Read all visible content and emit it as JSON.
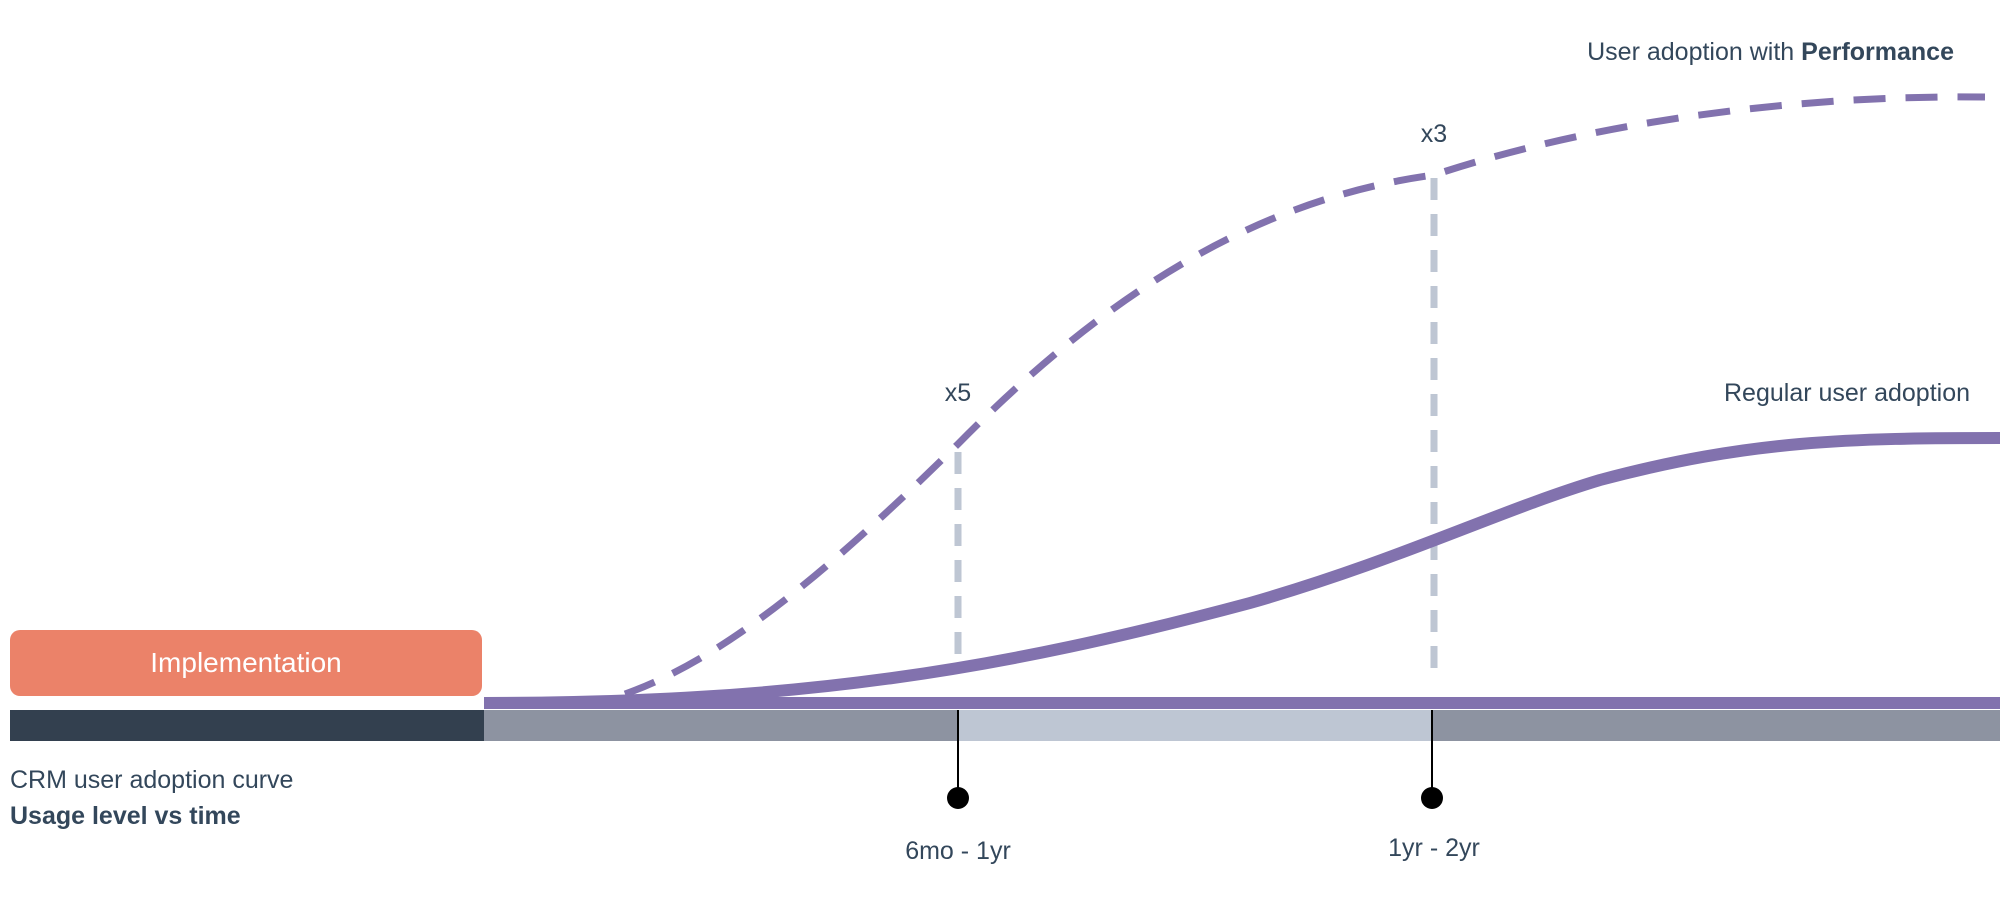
{
  "implementation": {
    "label": "Implementation"
  },
  "caption": {
    "line1": "CRM user adoption curve",
    "line2": "Usage level vs time"
  },
  "curves": {
    "performance": {
      "label_prefix": "User adoption with ",
      "label_bold": "Performance"
    },
    "regular": {
      "label": "Regular user adoption"
    }
  },
  "multipliers": [
    {
      "label": "x5"
    },
    {
      "label": "x3"
    }
  ],
  "periods": [
    {
      "label": "6mo - 1yr"
    },
    {
      "label": "1yr - 2yr"
    }
  ],
  "colors": {
    "curve": "#8272ae",
    "implementation": "#eb8269",
    "timeline_dark": "#33404f",
    "timeline_gray": "#8d93a1",
    "timeline_highlight": "#bec6d3",
    "guide": "#bec6d3",
    "text": "#33475b"
  }
}
